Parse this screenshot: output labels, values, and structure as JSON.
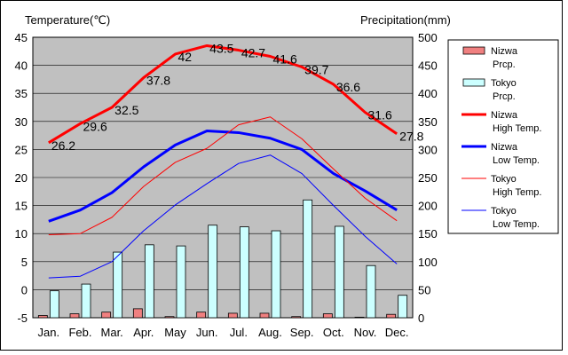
{
  "chart_data": {
    "type": "line",
    "left_axis_title": "Temperature(℃)",
    "right_axis_title": "Precipitation(mm)",
    "months": [
      "Jan.",
      "Feb.",
      "Mar.",
      "Apr.",
      "May",
      "Jun.",
      "Jul.",
      "Aug.",
      "Sep.",
      "Oct.",
      "Nov.",
      "Dec."
    ],
    "left_axis": {
      "min": -5,
      "max": 45,
      "ticks": [
        45,
        40,
        35,
        30,
        25,
        20,
        15,
        10,
        5,
        0,
        -5
      ]
    },
    "right_axis": {
      "min": 0,
      "max": 500,
      "ticks": [
        500,
        450,
        400,
        350,
        300,
        250,
        200,
        150,
        100,
        50,
        0
      ]
    },
    "grid": true,
    "legend_position": "right",
    "series": [
      {
        "key": "nizwa_prcp",
        "kind": "bar",
        "axis": "right",
        "legend_lines": [
          "Nizwa",
          "Prcp."
        ],
        "color": "#f08080",
        "values": [
          4,
          7,
          10,
          16,
          2,
          10,
          8,
          8,
          2,
          7,
          1,
          6
        ]
      },
      {
        "key": "tokyo_prcp",
        "kind": "bar",
        "axis": "right",
        "legend_lines": [
          "Tokyo",
          "Prcp."
        ],
        "color": "#ccffff",
        "values": [
          48,
          60,
          117,
          130,
          128,
          165,
          162,
          155,
          210,
          163,
          93,
          40
        ]
      },
      {
        "key": "nizwa_high",
        "kind": "line",
        "axis": "left",
        "legend_lines": [
          "Nizwa",
          "High Temp."
        ],
        "color": "#ff0000",
        "width": 3,
        "values": [
          26.2,
          29.6,
          32.5,
          37.8,
          42,
          43.5,
          42.7,
          41.6,
          39.7,
          36.6,
          31.6,
          27.8
        ]
      },
      {
        "key": "nizwa_low",
        "kind": "line",
        "axis": "left",
        "legend_lines": [
          "Nizwa",
          "Low Temp."
        ],
        "color": "#0000ff",
        "width": 3,
        "values": [
          12.2,
          14.2,
          17.3,
          21.9,
          25.8,
          28.3,
          28.0,
          27.0,
          25.0,
          20.7,
          17.6,
          14.2
        ]
      },
      {
        "key": "tokyo_high",
        "kind": "line",
        "axis": "left",
        "legend_lines": [
          "Tokyo",
          "High Temp."
        ],
        "color": "#ff0000",
        "width": 1,
        "values": [
          9.8,
          10.0,
          12.9,
          18.4,
          22.7,
          25.2,
          29.4,
          30.8,
          26.9,
          21.5,
          16.3,
          12.3
        ]
      },
      {
        "key": "tokyo_low",
        "kind": "line",
        "axis": "left",
        "legend_lines": [
          "Tokyo",
          "Low Temp."
        ],
        "color": "#0000ff",
        "width": 1,
        "values": [
          2.1,
          2.4,
          5.0,
          10.5,
          15.1,
          18.9,
          22.5,
          24.0,
          20.7,
          15.0,
          9.5,
          4.6
        ]
      }
    ],
    "data_labels": {
      "series": "nizwa_high",
      "texts": [
        "26.2",
        "29.6",
        "32.5",
        "37.8",
        "42",
        "43.5",
        "42.7",
        "41.6",
        "39.7",
        "36.6",
        "31.6",
        "27.8"
      ]
    }
  }
}
